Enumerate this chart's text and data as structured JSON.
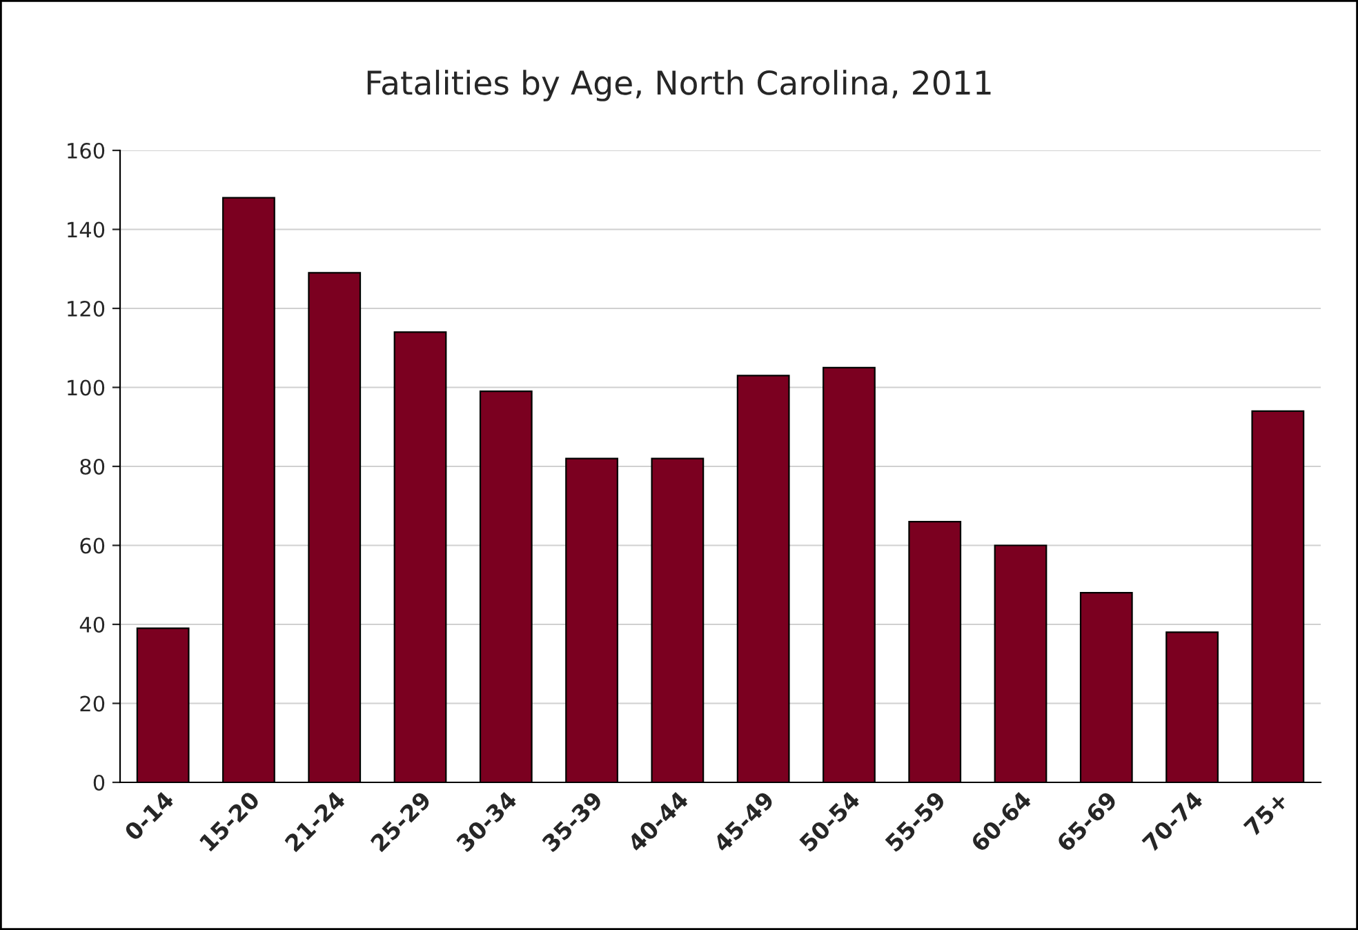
{
  "chart_data": {
    "type": "bar",
    "title": "Fatalities by Age, North Carolina, 2011",
    "categories": [
      "0-14",
      "15-20",
      "21-24",
      "25-29",
      "30-34",
      "35-39",
      "40-44",
      "45-49",
      "50-54",
      "55-59",
      "60-64",
      "65-69",
      "70-74",
      "75+"
    ],
    "values": [
      39,
      148,
      129,
      114,
      99,
      82,
      82,
      103,
      105,
      66,
      60,
      48,
      38,
      94
    ],
    "color": "#7b0020",
    "ylim": [
      0,
      160
    ],
    "yticks": [
      0,
      20,
      40,
      60,
      80,
      100,
      120,
      140,
      160
    ],
    "grid": "y",
    "legend": false
  }
}
